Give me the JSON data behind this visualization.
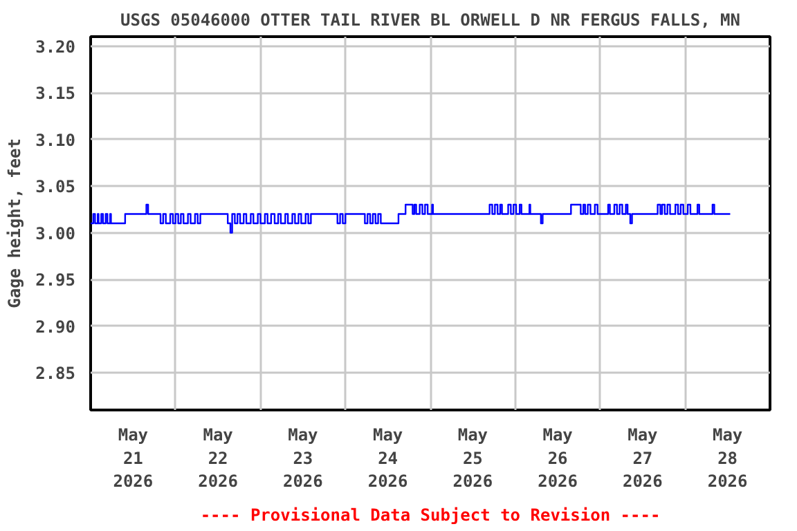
{
  "chart_data": {
    "type": "step",
    "title": "USGS 05046000 OTTER TAIL RIVER BL ORWELL D NR FERGUS FALLS, MN",
    "ylabel": "Gage height, feet",
    "annotations": [
      "---- Provisional Data Subject to Revision ----"
    ],
    "xlim": [
      "2026-05-21T00:00",
      "2026-05-29T00:00"
    ],
    "xticks": [
      {
        "value": "2026-05-21T12:00",
        "label": "May\n21\n2026"
      },
      {
        "value": "2026-05-22T00:00",
        "label": null
      },
      {
        "value": "2026-05-22T12:00",
        "label": "May\n22\n2026"
      },
      {
        "value": "2026-05-23T00:00",
        "label": null
      },
      {
        "value": "2026-05-23T12:00",
        "label": "May\n23\n2026"
      },
      {
        "value": "2026-05-24T00:00",
        "label": null
      },
      {
        "value": "2026-05-24T12:00",
        "label": "May\n24\n2026"
      },
      {
        "value": "2026-05-25T00:00",
        "label": null
      },
      {
        "value": "2026-05-25T12:00",
        "label": "May\n25\n2026"
      },
      {
        "value": "2026-05-26T00:00",
        "label": null
      },
      {
        "value": "2026-05-26T12:00",
        "label": "May\n26\n2026"
      },
      {
        "value": "2026-05-27T00:00",
        "label": null
      },
      {
        "value": "2026-05-27T12:00",
        "label": "May\n27\n2026"
      },
      {
        "value": "2026-05-28T00:00",
        "label": null
      },
      {
        "value": "2026-05-28T12:00",
        "label": "May\n28\n2026"
      }
    ],
    "ylim": [
      2.81,
      3.21
    ],
    "yticks": [
      {
        "value": 2.85,
        "label": "2.85"
      },
      {
        "value": 2.9,
        "label": "2.90"
      },
      {
        "value": 2.95,
        "label": "2.95"
      },
      {
        "value": 3.0,
        "label": "3.00"
      },
      {
        "value": 3.05,
        "label": "3.05"
      },
      {
        "value": 3.1,
        "label": "3.10"
      },
      {
        "value": 3.15,
        "label": "3.15"
      },
      {
        "value": 3.2,
        "label": "3.20"
      }
    ],
    "grid": true,
    "series": [
      {
        "color": "#0000ff",
        "x": [
          "2026-05-21T00:00",
          "2026-05-21T00:45",
          "2026-05-21T01:15",
          "2026-05-21T02:00",
          "2026-05-21T02:15",
          "2026-05-21T03:00",
          "2026-05-21T03:30",
          "2026-05-21T04:15",
          "2026-05-21T04:45",
          "2026-05-21T05:30",
          "2026-05-21T05:45",
          "2026-05-21T09:45",
          "2026-05-21T15:45",
          "2026-05-21T16:15",
          "2026-05-21T19:45",
          "2026-05-21T20:30",
          "2026-05-21T21:15",
          "2026-05-21T22:30",
          "2026-05-21T23:15",
          "2026-05-22T00:00",
          "2026-05-22T00:45",
          "2026-05-22T01:30",
          "2026-05-22T02:15",
          "2026-05-22T03:30",
          "2026-05-22T04:15",
          "2026-05-22T05:30",
          "2026-05-22T06:15",
          "2026-05-22T07:00",
          "2026-05-22T14:45",
          "2026-05-22T15:30",
          "2026-05-22T16:00",
          "2026-05-22T16:45",
          "2026-05-22T17:30",
          "2026-05-22T18:15",
          "2026-05-22T19:15",
          "2026-05-22T20:00",
          "2026-05-22T21:15",
          "2026-05-22T22:00",
          "2026-05-22T23:15",
          "2026-05-23T00:00",
          "2026-05-23T01:15",
          "2026-05-23T02:00",
          "2026-05-23T03:00",
          "2026-05-23T04:00",
          "2026-05-23T05:00",
          "2026-05-23T05:45",
          "2026-05-23T07:00",
          "2026-05-23T07:45",
          "2026-05-23T09:00",
          "2026-05-23T09:45",
          "2026-05-23T10:45",
          "2026-05-23T11:30",
          "2026-05-23T12:45",
          "2026-05-23T13:30",
          "2026-05-23T14:15",
          "2026-05-23T21:45",
          "2026-05-23T22:30",
          "2026-05-23T23:15",
          "2026-05-24T00:00",
          "2026-05-24T05:30",
          "2026-05-24T06:15",
          "2026-05-24T07:00",
          "2026-05-24T07:45",
          "2026-05-24T08:30",
          "2026-05-24T09:15",
          "2026-05-24T10:00",
          "2026-05-24T15:00",
          "2026-05-24T17:00",
          "2026-05-24T19:00",
          "2026-05-24T19:30",
          "2026-05-24T20:00",
          "2026-05-24T21:00",
          "2026-05-24T21:45",
          "2026-05-24T22:30",
          "2026-05-24T23:15",
          "2026-05-25T00:30",
          "2026-05-25T00:45",
          "2026-05-25T16:45",
          "2026-05-25T17:30",
          "2026-05-25T18:15",
          "2026-05-25T19:00",
          "2026-05-25T19:45",
          "2026-05-25T20:15",
          "2026-05-25T22:00",
          "2026-05-25T22:45",
          "2026-05-25T23:30",
          "2026-05-26T00:15",
          "2026-05-26T01:15",
          "2026-05-26T01:45",
          "2026-05-26T04:00",
          "2026-05-26T04:15",
          "2026-05-26T07:15",
          "2026-05-26T07:45",
          "2026-05-26T15:45",
          "2026-05-26T18:30",
          "2026-05-26T19:15",
          "2026-05-26T19:45",
          "2026-05-26T20:30",
          "2026-05-26T21:15",
          "2026-05-26T22:30",
          "2026-05-26T23:15",
          "2026-05-27T02:15",
          "2026-05-27T02:45",
          "2026-05-27T04:00",
          "2026-05-27T04:45",
          "2026-05-27T05:30",
          "2026-05-27T06:15",
          "2026-05-27T07:15",
          "2026-05-27T07:45",
          "2026-05-27T08:30",
          "2026-05-27T09:00",
          "2026-05-27T16:15",
          "2026-05-27T17:00",
          "2026-05-27T17:30",
          "2026-05-27T18:15",
          "2026-05-27T19:00",
          "2026-05-27T19:45",
          "2026-05-27T21:15",
          "2026-05-27T22:00",
          "2026-05-27T22:45",
          "2026-05-27T23:30",
          "2026-05-28T00:45",
          "2026-05-28T01:30",
          "2026-05-28T03:30",
          "2026-05-28T04:00",
          "2026-05-28T07:45",
          "2026-05-28T08:15",
          "2026-05-28T12:45"
        ],
        "values": [
          3.01,
          3.02,
          3.01,
          3.02,
          3.01,
          3.02,
          3.01,
          3.02,
          3.01,
          3.02,
          3.01,
          3.02,
          3.03,
          3.02,
          3.01,
          3.02,
          3.01,
          3.02,
          3.01,
          3.02,
          3.01,
          3.02,
          3.01,
          3.02,
          3.01,
          3.02,
          3.01,
          3.02,
          3.01,
          3.0,
          3.02,
          3.01,
          3.02,
          3.01,
          3.02,
          3.01,
          3.02,
          3.01,
          3.02,
          3.01,
          3.02,
          3.01,
          3.02,
          3.01,
          3.02,
          3.01,
          3.02,
          3.01,
          3.02,
          3.01,
          3.02,
          3.01,
          3.02,
          3.01,
          3.02,
          3.01,
          3.02,
          3.01,
          3.02,
          3.01,
          3.02,
          3.01,
          3.02,
          3.01,
          3.02,
          3.01,
          3.02,
          3.03,
          3.02,
          3.03,
          3.02,
          3.03,
          3.02,
          3.03,
          3.02,
          3.03,
          3.02,
          3.03,
          3.02,
          3.03,
          3.02,
          3.03,
          3.02,
          3.03,
          3.02,
          3.03,
          3.02,
          3.03,
          3.02,
          3.03,
          3.02,
          3.01,
          3.02,
          3.03,
          3.02,
          3.03,
          3.02,
          3.03,
          3.02,
          3.03,
          3.02,
          3.03,
          3.02,
          3.03,
          3.02,
          3.03,
          3.02,
          3.03,
          3.02,
          3.01,
          3.02,
          3.03,
          3.02,
          3.03,
          3.02,
          3.03,
          3.02,
          3.03,
          3.02,
          3.03,
          3.02,
          3.03,
          3.02,
          3.03,
          3.02,
          3.03,
          3.02,
          3.02
        ]
      }
    ]
  }
}
